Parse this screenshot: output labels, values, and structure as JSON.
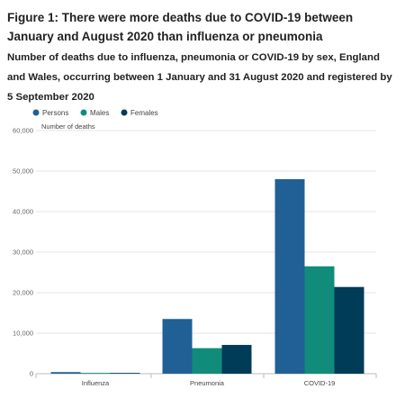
{
  "title": "Figure 1: There were more deaths due to COVID-19 between January and August 2020 than influenza or pneumonia",
  "subtitle": "Number of deaths due to influenza, pneumonia or COVID-19 by sex, England and Wales, occurring between 1 January and 31 August 2020 and registered by 5 September 2020",
  "chart_data": {
    "type": "bar",
    "categories": [
      "Influenza",
      "Pneumonia",
      "COVID-19"
    ],
    "series": [
      {
        "name": "Persons",
        "color": "#206095",
        "values": [
          390,
          13500,
          48000
        ]
      },
      {
        "name": "Males",
        "color": "#118c7b",
        "values": [
          200,
          6300,
          26500
        ]
      },
      {
        "name": "Females",
        "color": "#003c57",
        "values": [
          190,
          7100,
          21400
        ]
      }
    ],
    "ylabel": "Number of deaths",
    "xlabel": "",
    "ylim": [
      0,
      60000
    ],
    "yticks": [
      "0",
      "10,000",
      "20,000",
      "30,000",
      "40,000",
      "50,000",
      "60,000"
    ],
    "grid": true,
    "legend": "top-left"
  }
}
